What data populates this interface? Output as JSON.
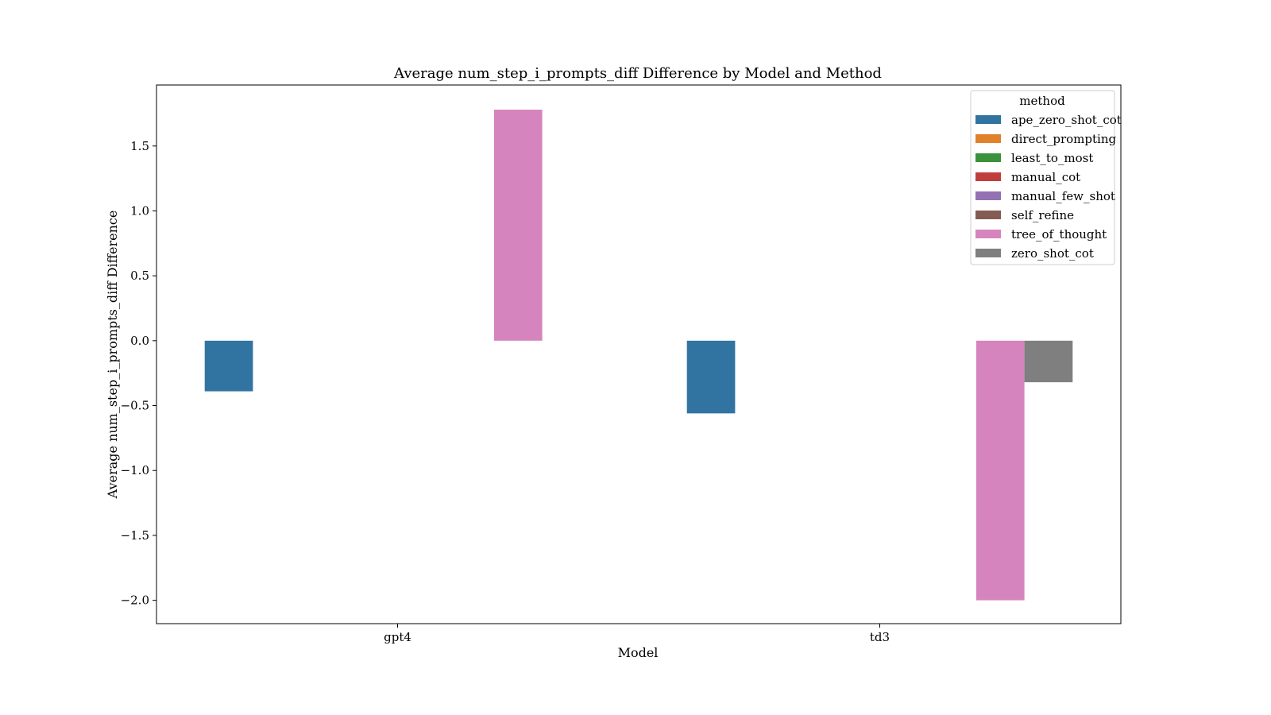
{
  "chart_data": {
    "type": "bar",
    "title": "Average num_step_i_prompts_diff Difference by Model and Method",
    "xlabel": "Model",
    "ylabel": "Average num_step_i_prompts_diff Difference",
    "categories": [
      "gpt4",
      "td3"
    ],
    "ylim": [
      -2.18,
      1.97
    ],
    "yticks": [
      1.5,
      1.0,
      0.5,
      0.0,
      -0.5,
      -1.0,
      -1.5,
      -2.0
    ],
    "ytick_labels": [
      "1.5",
      "1.0",
      "0.5",
      "0.0",
      "−0.5",
      "−1.0",
      "−1.5",
      "−2.0"
    ],
    "legend_title": "method",
    "legend_position": "top-right",
    "grid": false,
    "series": [
      {
        "name": "ape_zero_shot_cot",
        "color": "#3274a1",
        "values": [
          -0.39,
          -0.56
        ]
      },
      {
        "name": "direct_prompting",
        "color": "#e1812c",
        "values": [
          null,
          null
        ]
      },
      {
        "name": "least_to_most",
        "color": "#3a923a",
        "values": [
          null,
          null
        ]
      },
      {
        "name": "manual_cot",
        "color": "#c03d3e",
        "values": [
          null,
          null
        ]
      },
      {
        "name": "manual_few_shot",
        "color": "#9372b2",
        "values": [
          null,
          null
        ]
      },
      {
        "name": "self_refine",
        "color": "#845b53",
        "values": [
          null,
          null
        ]
      },
      {
        "name": "tree_of_thought",
        "color": "#d684bd",
        "values": [
          1.78,
          -2.0
        ]
      },
      {
        "name": "zero_shot_cot",
        "color": "#7f7f7f",
        "values": [
          null,
          -0.32
        ]
      }
    ]
  }
}
